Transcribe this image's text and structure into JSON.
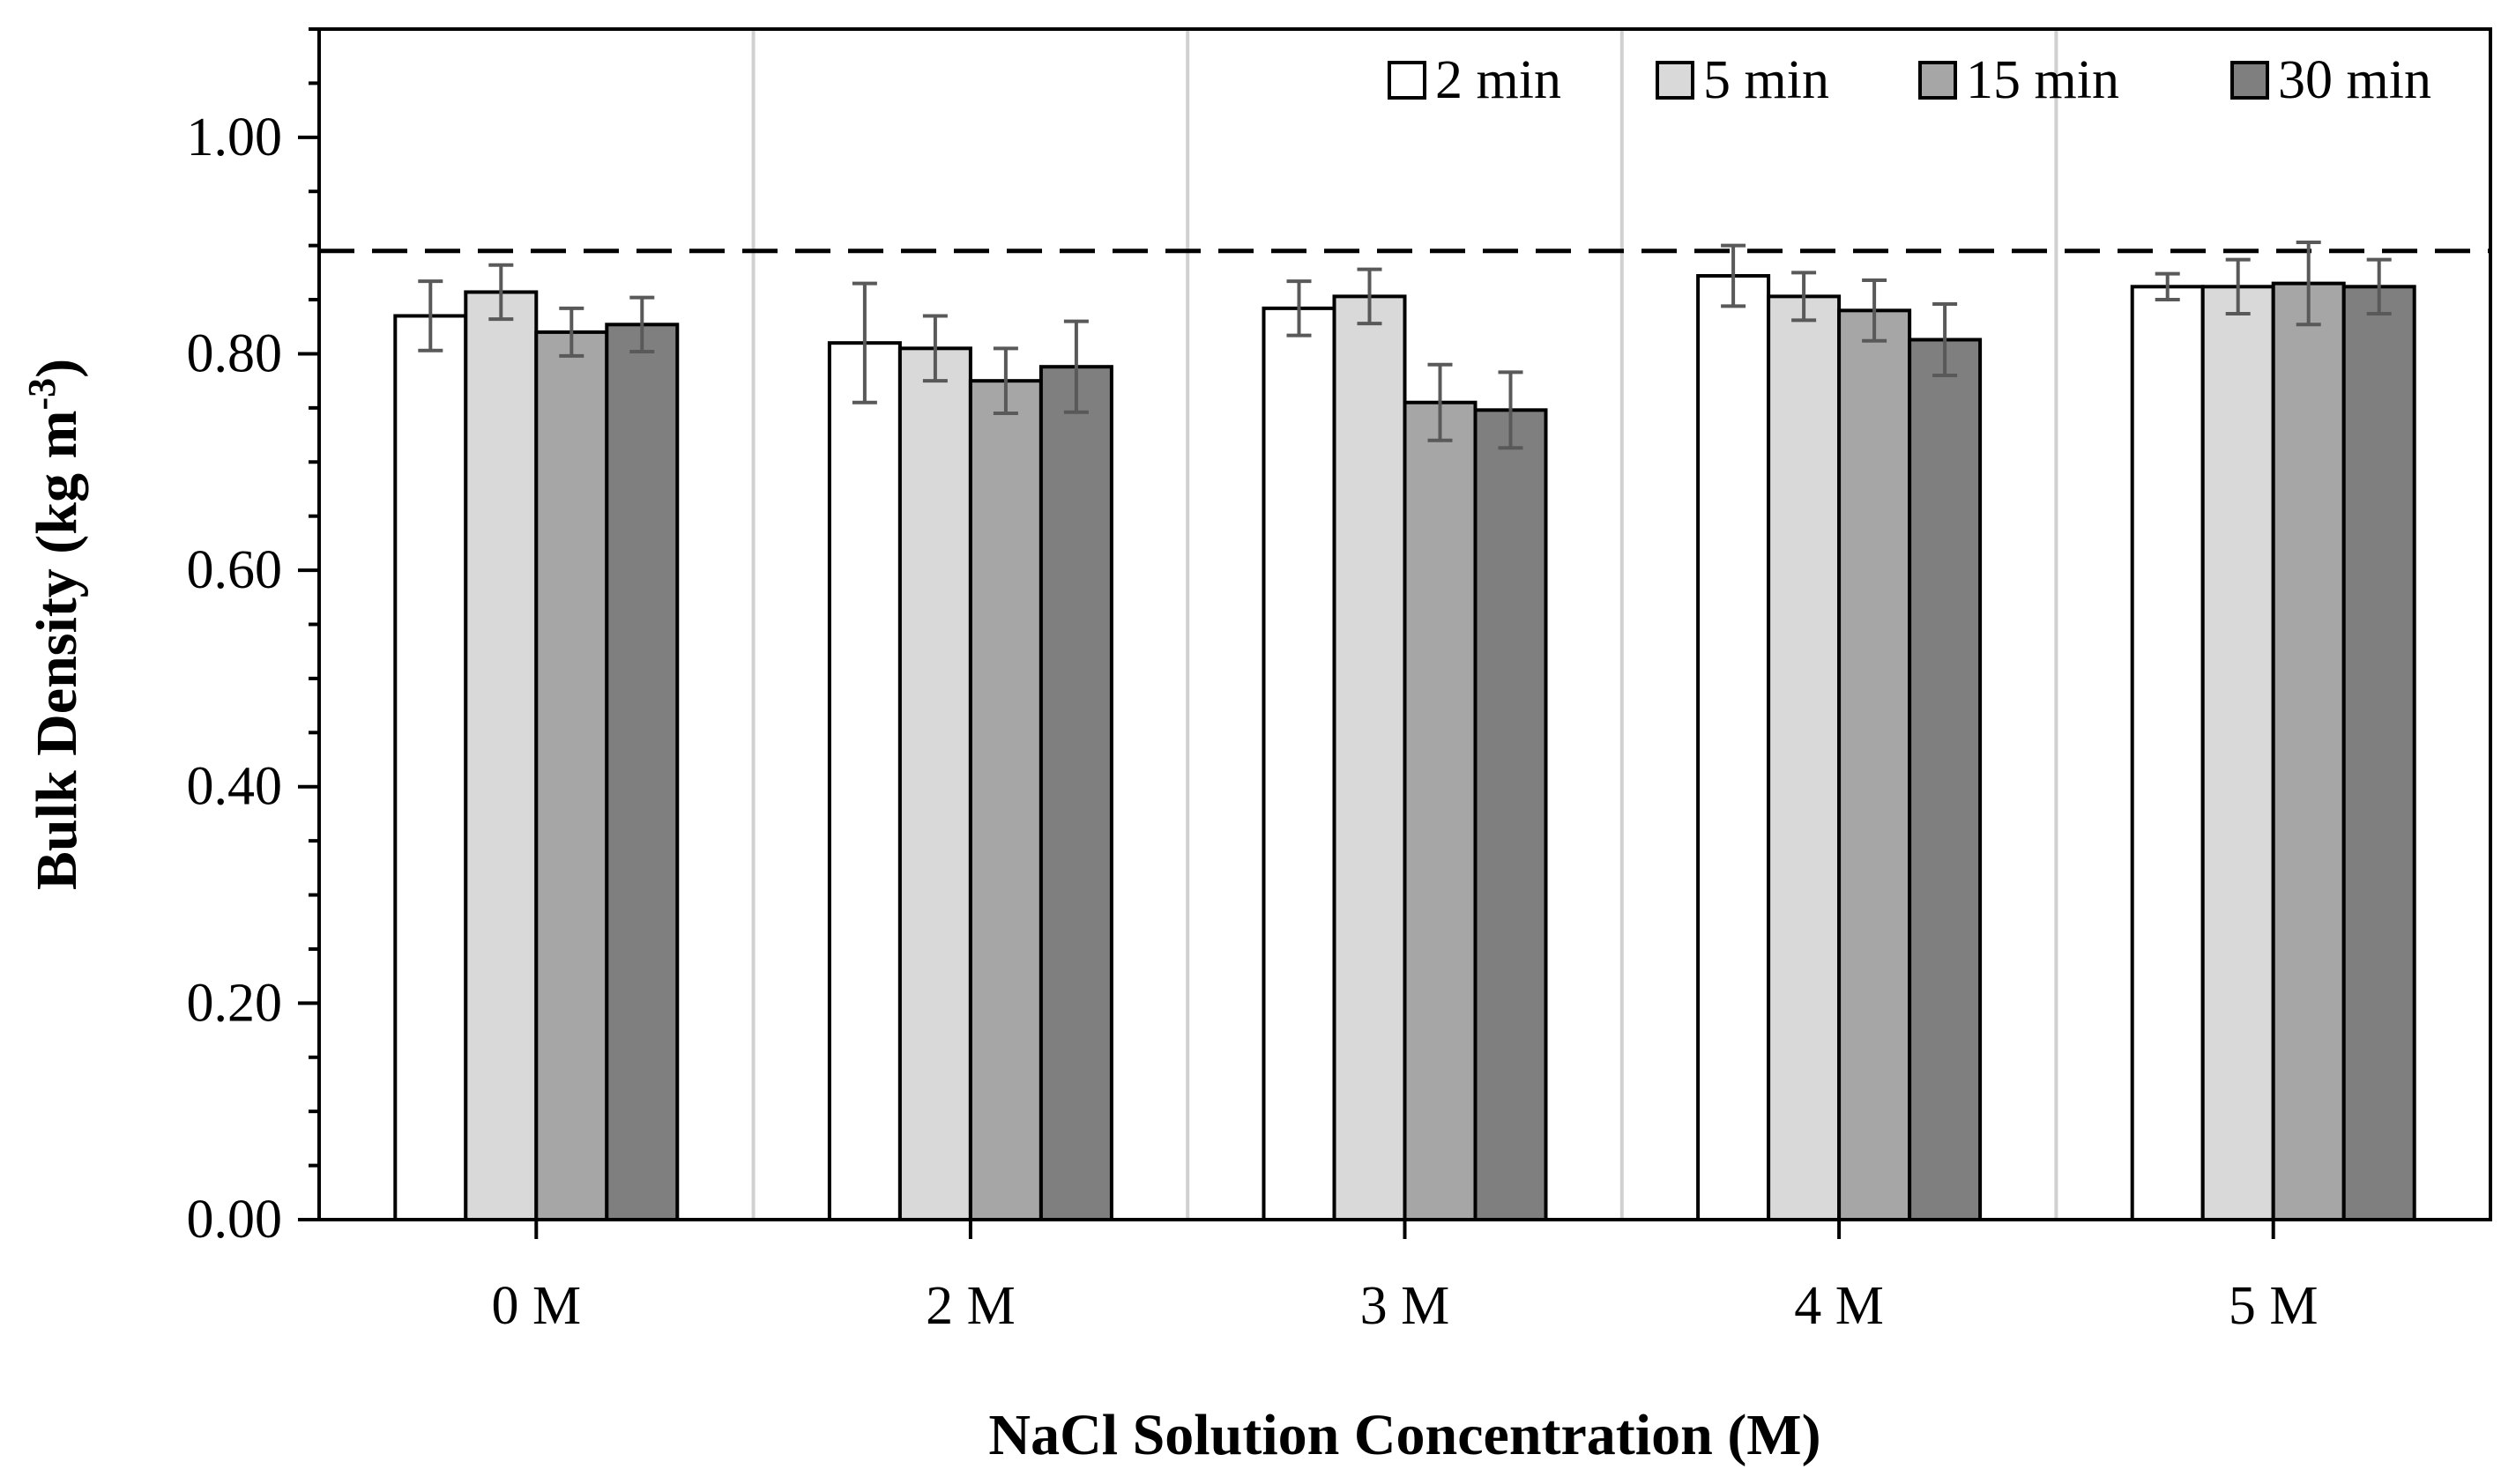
{
  "chart_data": {
    "type": "bar",
    "title": "",
    "xlabel": "NaCl Solution Concentration (M)",
    "ylabel_main": "Bulk Density (kg m",
    "ylabel_sup": "-3",
    "ylabel_close": ")",
    "ylim": [
      0,
      1.1
    ],
    "yticks": [
      "0.00",
      "0.20",
      "0.40",
      "0.60",
      "0.80",
      "1.00"
    ],
    "grid": false,
    "legend_position": "top-right",
    "reference_line": 0.895,
    "categories": [
      "0 M",
      "2 M",
      "3 M",
      "4 M",
      "5 M"
    ],
    "series": [
      {
        "name": "2 min",
        "color": "#ffffff",
        "values": [
          0.835,
          0.81,
          0.842,
          0.872,
          0.862
        ],
        "errors": [
          0.032,
          0.055,
          0.025,
          0.028,
          0.012
        ]
      },
      {
        "name": "5 min",
        "color": "#d9d9d9",
        "values": [
          0.857,
          0.805,
          0.853,
          0.853,
          0.862
        ],
        "errors": [
          0.025,
          0.03,
          0.025,
          0.022,
          0.025
        ]
      },
      {
        "name": "15 min",
        "color": "#a6a6a6",
        "values": [
          0.82,
          0.775,
          0.755,
          0.84,
          0.865
        ],
        "errors": [
          0.022,
          0.03,
          0.035,
          0.028,
          0.038
        ]
      },
      {
        "name": "30 min",
        "color": "#7f7f7f",
        "values": [
          0.827,
          0.788,
          0.748,
          0.813,
          0.862
        ],
        "errors": [
          0.025,
          0.042,
          0.035,
          0.033,
          0.025
        ]
      }
    ]
  }
}
